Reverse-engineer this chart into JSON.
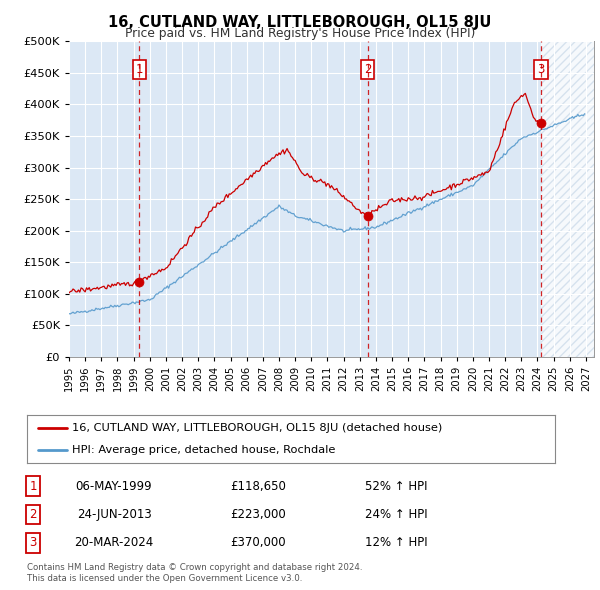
{
  "title": "16, CUTLAND WAY, LITTLEBOROUGH, OL15 8JU",
  "subtitle": "Price paid vs. HM Land Registry's House Price Index (HPI)",
  "legend_line1": "16, CUTLAND WAY, LITTLEBOROUGH, OL15 8JU (detached house)",
  "legend_line2": "HPI: Average price, detached house, Rochdale",
  "footer1": "Contains HM Land Registry data © Crown copyright and database right 2024.",
  "footer2": "This data is licensed under the Open Government Licence v3.0.",
  "transactions": [
    {
      "num": 1,
      "date": "06-MAY-1999",
      "price": "£118,650",
      "pct": "52% ↑ HPI",
      "year": 1999.35
    },
    {
      "num": 2,
      "date": "24-JUN-2013",
      "price": "£223,000",
      "pct": "24% ↑ HPI",
      "year": 2013.48
    },
    {
      "num": 3,
      "date": "20-MAR-2024",
      "price": "£370,000",
      "pct": "12% ↑ HPI",
      "year": 2024.22
    }
  ],
  "transaction_values": [
    118650,
    223000,
    370000
  ],
  "red_color": "#cc0000",
  "blue_color": "#5599cc",
  "background_color": "#dce8f5",
  "hatch_color": "#c8d8e8",
  "grid_color": "#ffffff",
  "ylim": [
    0,
    500000
  ],
  "xlim_start": 1995.0,
  "xlim_end": 2027.5,
  "yticks": [
    0,
    50000,
    100000,
    150000,
    200000,
    250000,
    300000,
    350000,
    400000,
    450000,
    500000
  ],
  "xticks": [
    1995,
    1996,
    1997,
    1998,
    1999,
    2000,
    2001,
    2002,
    2003,
    2004,
    2005,
    2006,
    2007,
    2008,
    2009,
    2010,
    2011,
    2012,
    2013,
    2014,
    2015,
    2016,
    2017,
    2018,
    2019,
    2020,
    2021,
    2022,
    2023,
    2024,
    2025,
    2026,
    2027
  ]
}
